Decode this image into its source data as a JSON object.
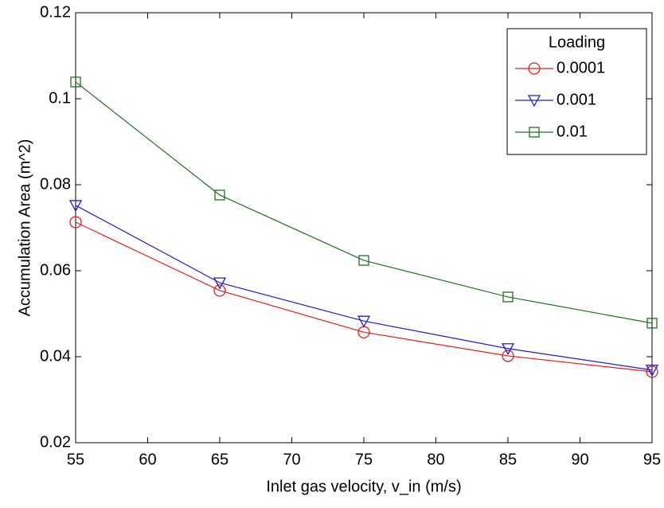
{
  "chart_data": {
    "type": "line",
    "xlabel": "Inlet gas velocity, v_in (m/s)",
    "ylabel": "Accumulation Area (m^2)",
    "legend_title": "Loading",
    "legend": "upper right",
    "x": [
      55,
      65,
      75,
      85,
      95
    ],
    "series": [
      {
        "name": "0.0001",
        "color": "#e02020",
        "marker": "circle",
        "values": [
          0.0713,
          0.0554,
          0.0457,
          0.0402,
          0.0365
        ]
      },
      {
        "name": "0.001",
        "color": "#2020c0",
        "marker": "triangle-down",
        "values": [
          0.0752,
          0.0572,
          0.0483,
          0.0419,
          0.0369
        ]
      },
      {
        "name": "0.01",
        "color": "#207020",
        "marker": "square",
        "values": [
          0.1039,
          0.0776,
          0.0624,
          0.0539,
          0.0478
        ]
      }
    ],
    "xlim": [
      55,
      95
    ],
    "xticks": [
      55,
      60,
      65,
      70,
      75,
      80,
      85,
      90,
      95
    ],
    "ylim": [
      0.02,
      0.12
    ],
    "yticks": [
      0.02,
      0.04,
      0.06,
      0.08,
      0.1,
      0.12
    ]
  }
}
